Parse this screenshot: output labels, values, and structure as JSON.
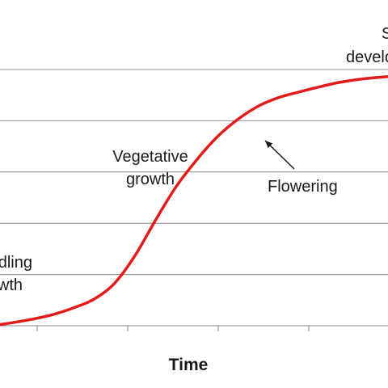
{
  "chart_data": {
    "type": "line",
    "title": "",
    "xlabel": "Time",
    "ylabel": "",
    "xlim": [
      0,
      100
    ],
    "ylim": [
      0,
      5
    ],
    "grid": {
      "horizontal": true,
      "vertical": false
    },
    "series": [
      {
        "color": "#e31b1b",
        "x": [
          0,
          5,
          10,
          15,
          20,
          25,
          30,
          35,
          40,
          45,
          50,
          55,
          60,
          65,
          70,
          75,
          80,
          85,
          90,
          95,
          100
        ],
        "y": [
          0,
          0.06,
          0.13,
          0.22,
          0.35,
          0.52,
          0.83,
          1.37,
          2.06,
          2.71,
          3.23,
          3.68,
          4.02,
          4.28,
          4.45,
          4.56,
          4.66,
          4.75,
          4.81,
          4.85,
          4.88
        ]
      }
    ],
    "annotations": {
      "seedling_line1": "Seedling",
      "seedling_line2": "growth",
      "vegetative_line1": "Vegetative",
      "vegetative_line2": "growth",
      "flowering": "Flowering",
      "seed_line1": "Seed",
      "seed_line2": "development"
    },
    "colors": {
      "curve": "#e31b1b",
      "grid": "#8c8c8c",
      "axis": "#8c8c8c",
      "text": "#1a1a1a"
    }
  }
}
